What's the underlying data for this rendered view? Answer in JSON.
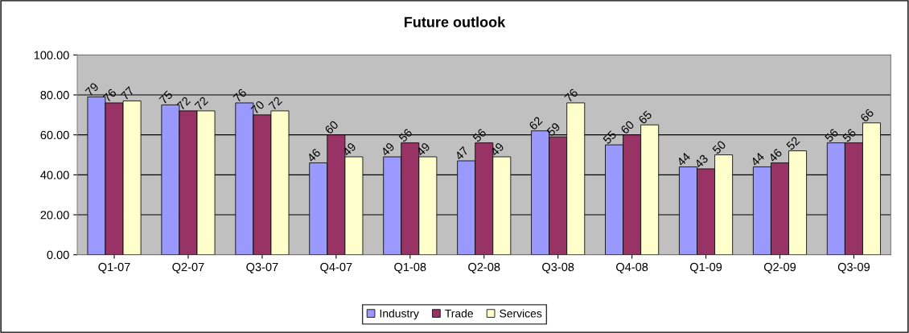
{
  "chart_data": {
    "type": "bar",
    "title": "Future outlook",
    "categories": [
      "Q1-07",
      "Q2-07",
      "Q3-07",
      "Q4-07",
      "Q1-08",
      "Q2-08",
      "Q3-08",
      "Q4-08",
      "Q1-09",
      "Q2-09",
      "Q3-09"
    ],
    "series": [
      {
        "name": "Industry",
        "color": "#9999ff",
        "values": [
          79,
          75,
          76,
          46,
          49,
          47,
          62,
          55,
          44,
          44,
          56
        ]
      },
      {
        "name": "Trade",
        "color": "#993366",
        "values": [
          76,
          72,
          70,
          60,
          56,
          56,
          59,
          60,
          43,
          46,
          56
        ]
      },
      {
        "name": "Services",
        "color": "#ffffcc",
        "values": [
          77,
          72,
          72,
          49,
          49,
          49,
          76,
          65,
          50,
          52,
          66
        ]
      }
    ],
    "ylim": [
      0,
      100
    ],
    "yticks": [
      {
        "value": 0,
        "label": "0.00"
      },
      {
        "value": 20,
        "label": "20.00"
      },
      {
        "value": 40,
        "label": "40.00"
      },
      {
        "value": 60,
        "label": "60.00"
      },
      {
        "value": 80,
        "label": "80.00"
      },
      {
        "value": 100,
        "label": "100.00"
      }
    ],
    "grid": "y",
    "legend": "bottom",
    "data_labels": true
  }
}
